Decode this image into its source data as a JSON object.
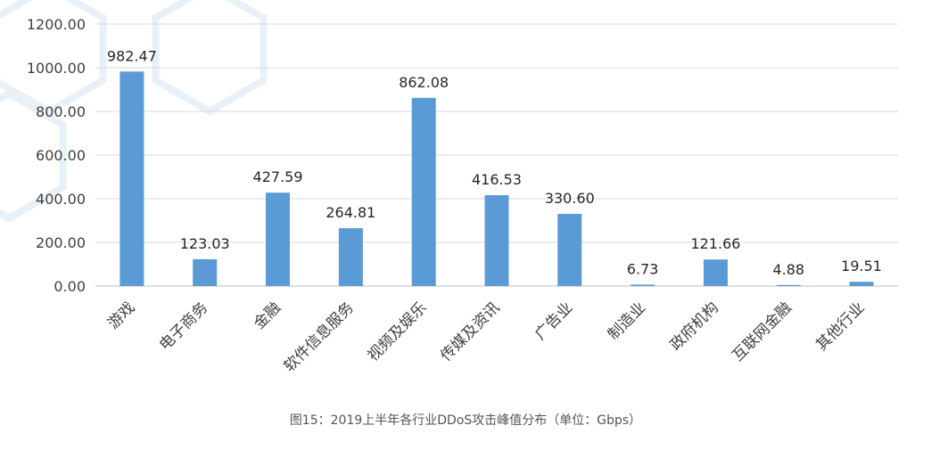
{
  "caption": "图15：2019上半年各行业DDoS攻击峰值分布（单位：Gbps）",
  "chart_data": {
    "type": "bar",
    "categories": [
      "游戏",
      "电子商务",
      "金融",
      "软件信息服务",
      "视频及娱乐",
      "传媒及资讯",
      "广告业",
      "制造业",
      "政府机构",
      "互联网金融",
      "其他行业"
    ],
    "values": [
      982.47,
      123.03,
      427.59,
      264.81,
      862.08,
      416.53,
      330.6,
      6.73,
      121.66,
      4.88,
      19.51
    ],
    "value_labels": [
      "982.47",
      "123.03",
      "427.59",
      "264.81",
      "862.08",
      "416.53",
      "330.60",
      "6.73",
      "121.66",
      "4.88",
      "19.51"
    ],
    "y_ticks": [
      "0.00",
      "200.00",
      "400.00",
      "600.00",
      "800.00",
      "1000.00",
      "1200.00"
    ],
    "ylim": [
      0,
      1200
    ],
    "grid": true,
    "bar_color": "#5b9bd5",
    "grid_color": "#d9d9d9",
    "axis_color": "#bfbfbf",
    "text_color": "#404040",
    "decor_color": "#e9f1f8"
  }
}
